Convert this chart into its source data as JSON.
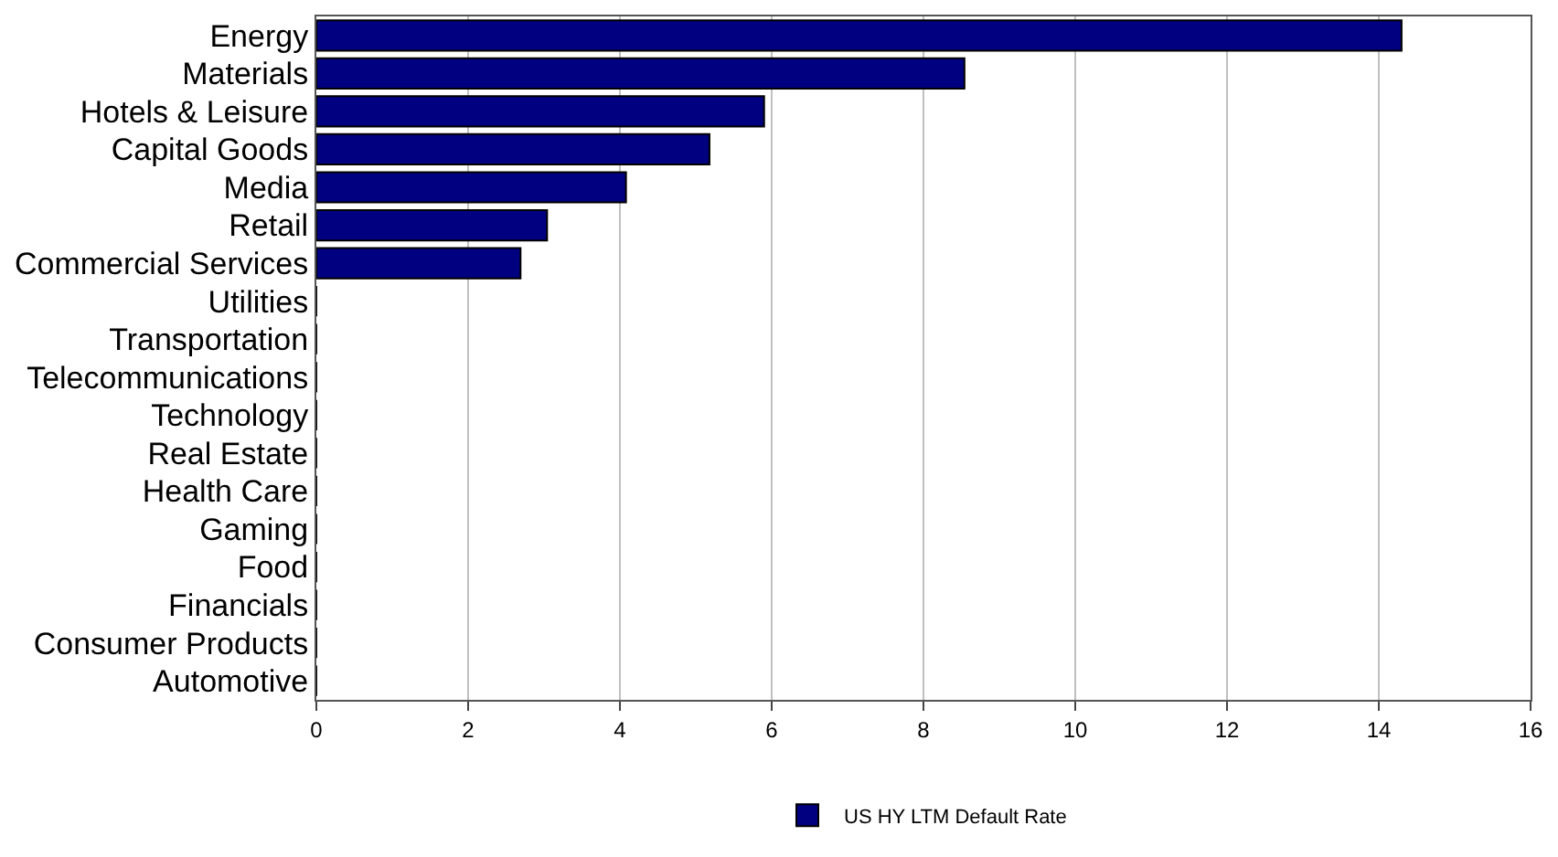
{
  "chart_data": {
    "type": "bar",
    "orientation": "horizontal",
    "categories": [
      "Energy",
      "Materials",
      "Hotels & Leisure",
      "Capital Goods",
      "Media",
      "Retail",
      "Commercial Services",
      "Utilities",
      "Transportation",
      "Telecommunications",
      "Technology",
      "Real Estate",
      "Health Care",
      "Gaming",
      "Food",
      "Financials",
      "Consumer Products",
      "Automotive"
    ],
    "series": [
      {
        "name": "US HY LTM Default Rate",
        "color": "#000080",
        "values": [
          14.3,
          8.54,
          5.9,
          5.18,
          4.08,
          3.04,
          2.69,
          0,
          0,
          0,
          0,
          0,
          0,
          0,
          0,
          0,
          0,
          0
        ]
      }
    ],
    "xlim": [
      0,
      16
    ],
    "xticks": [
      0,
      2,
      4,
      6,
      8,
      10,
      12,
      14,
      16
    ],
    "grid": "x",
    "legend": "bottom"
  }
}
